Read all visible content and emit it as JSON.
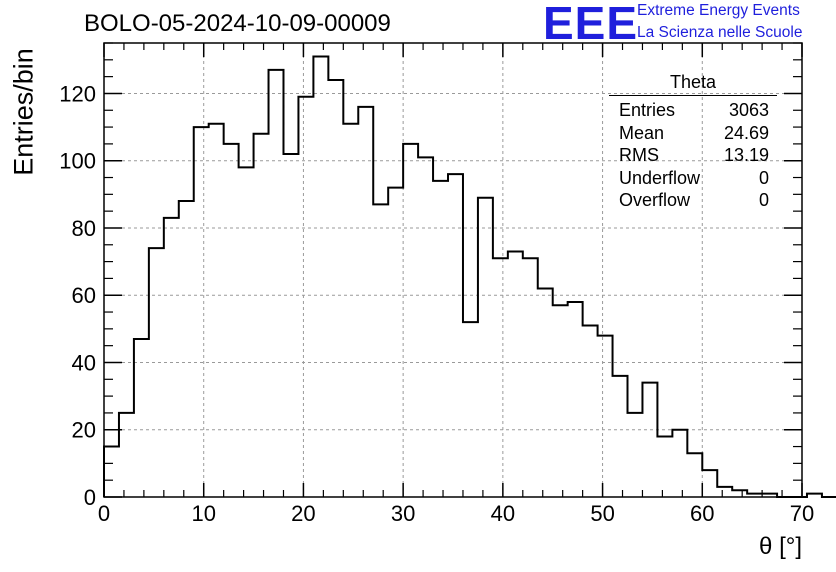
{
  "header": {
    "run_title": "BOLO-05-2024-10-09-00009",
    "logo_text": "EEE",
    "logo_line1": "Extreme Energy Events",
    "logo_line2": "La Scienza nelle Scuole",
    "logo_color": "#1f1fdc"
  },
  "stats": {
    "title": "Theta",
    "rows": [
      {
        "label": "Entries",
        "value": "3063"
      },
      {
        "label": "Mean",
        "value": "24.69"
      },
      {
        "label": "RMS",
        "value": "13.19"
      },
      {
        "label": "Underflow",
        "value": "0"
      },
      {
        "label": "Overflow",
        "value": "0"
      }
    ]
  },
  "chart_data": {
    "type": "histogram",
    "xlabel": "θ [°]",
    "ylabel": "Entries/bin",
    "xlim": [
      0,
      70
    ],
    "ylim": [
      0,
      135
    ],
    "bin_width": 1.5,
    "x_ticks": [
      0,
      10,
      20,
      30,
      40,
      50,
      60,
      70
    ],
    "y_ticks": [
      0,
      20,
      40,
      60,
      80,
      100,
      120
    ],
    "grid": true,
    "line_color": "#000000",
    "values": [
      15,
      25,
      47,
      74,
      83,
      88,
      110,
      111,
      105,
      98,
      108,
      127,
      102,
      119,
      131,
      124,
      111,
      116,
      87,
      92,
      105,
      101,
      94,
      96,
      52,
      89,
      71,
      73,
      71,
      62,
      57,
      58,
      51,
      48,
      36,
      25,
      34,
      18,
      20,
      13,
      8,
      3,
      2,
      1,
      1,
      0,
      0,
      1,
      0
    ]
  }
}
